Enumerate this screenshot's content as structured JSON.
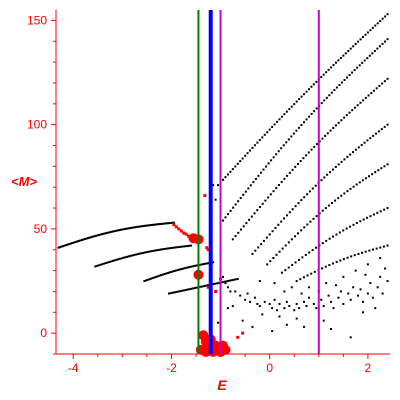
{
  "chart_data": {
    "type": "scatter",
    "xlabel": "E",
    "ylabel": "<M>",
    "xlim": [
      -4.35,
      2.45
    ],
    "ylim": [
      -10,
      155
    ],
    "xticks": [
      {
        "value": -4,
        "label": "-4"
      },
      {
        "value": -2,
        "label": "-2"
      },
      {
        "value": 0,
        "label": "0"
      },
      {
        "value": 2,
        "label": "2"
      }
    ],
    "yticks": [
      {
        "value": 0,
        "label": "0"
      },
      {
        "value": 50,
        "label": "50"
      },
      {
        "value": 100,
        "label": "100"
      },
      {
        "value": 150,
        "label": "150"
      }
    ],
    "grid": false,
    "axis_color": "#ff0000",
    "tick_label_color": "#ff0000",
    "axis_label_color": "#ff0000",
    "vertical_lines": [
      {
        "x": -1.45,
        "color": "#008000"
      },
      {
        "x": -1.2,
        "color": "#0000ff"
      },
      {
        "x": -1.0,
        "color": "#cc00cc"
      },
      {
        "x": 1.0,
        "color": "#cc00cc"
      }
    ],
    "series": [
      {
        "marker": "small",
        "color": "#000000",
        "curves": [
          {
            "x_start": -4.3,
            "x_end": -1.95,
            "y_start": 41,
            "y_end": 53,
            "n": 75,
            "bend": 0.35
          },
          {
            "x_start": -3.55,
            "x_end": -1.6,
            "y_start": 32,
            "y_end": 42,
            "n": 55,
            "bend": 0.3
          },
          {
            "x_start": -2.55,
            "x_end": -1.15,
            "y_start": 25,
            "y_end": 34,
            "n": 42,
            "bend": 0.2
          },
          {
            "x_start": -2.05,
            "x_end": -0.65,
            "y_start": 19,
            "y_end": 26,
            "n": 38,
            "bend": 0.0
          },
          {
            "x_start": -1.05,
            "x_end": 2.4,
            "y_start": 71,
            "y_end": 153,
            "n": 70,
            "bend": 0.05
          },
          {
            "x_start": -0.95,
            "x_end": 2.4,
            "y_start": 54,
            "y_end": 141,
            "n": 66,
            "bend": 0.1
          },
          {
            "x_start": -0.75,
            "x_end": 2.4,
            "y_start": 45,
            "y_end": 122,
            "n": 58,
            "bend": 0.1
          },
          {
            "x_start": -0.35,
            "x_end": 2.4,
            "y_start": 38,
            "y_end": 100,
            "n": 48,
            "bend": 0.12
          },
          {
            "x_start": -0.05,
            "x_end": 2.4,
            "y_start": 33,
            "y_end": 81,
            "n": 40,
            "bend": 0.15
          },
          {
            "x_start": 0.25,
            "x_end": 2.4,
            "y_start": 29,
            "y_end": 60,
            "n": 32,
            "bend": 0.15
          },
          {
            "x_start": 0.55,
            "x_end": 2.4,
            "y_start": 25,
            "y_end": 42,
            "n": 26,
            "bend": 0.2
          }
        ],
        "scattered_points": [
          [
            -1.0,
            30
          ],
          [
            -0.95,
            27
          ],
          [
            -0.9,
            24
          ],
          [
            -0.85,
            22
          ],
          [
            -0.8,
            20
          ],
          [
            -0.7,
            20
          ],
          [
            -0.6,
            18
          ],
          [
            -0.5,
            16
          ],
          [
            -0.45,
            19
          ],
          [
            -0.4,
            15
          ],
          [
            -0.3,
            17
          ],
          [
            -0.25,
            14
          ],
          [
            -0.2,
            13
          ],
          [
            -0.1,
            15
          ],
          [
            0.0,
            14
          ],
          [
            0.05,
            12
          ],
          [
            0.1,
            16
          ],
          [
            0.15,
            11
          ],
          [
            0.2,
            14
          ],
          [
            0.3,
            12
          ],
          [
            0.35,
            15
          ],
          [
            0.4,
            13
          ],
          [
            0.5,
            11
          ],
          [
            0.55,
            14
          ],
          [
            0.6,
            12
          ],
          [
            0.7,
            15
          ],
          [
            0.75,
            13
          ],
          [
            0.8,
            17
          ],
          [
            0.9,
            14
          ],
          [
            0.95,
            12
          ],
          [
            1.05,
            16
          ],
          [
            1.1,
            13
          ],
          [
            1.2,
            18
          ],
          [
            1.25,
            15
          ],
          [
            1.3,
            12
          ],
          [
            1.4,
            17
          ],
          [
            1.45,
            20
          ],
          [
            1.5,
            14
          ],
          [
            1.6,
            19
          ],
          [
            1.65,
            16
          ],
          [
            1.7,
            22
          ],
          [
            1.8,
            18
          ],
          [
            1.85,
            21
          ],
          [
            1.9,
            15
          ],
          [
            2.0,
            19
          ],
          [
            2.05,
            24
          ],
          [
            2.1,
            17
          ],
          [
            2.2,
            22
          ],
          [
            2.25,
            27
          ],
          [
            2.3,
            19
          ],
          [
            2.35,
            31
          ],
          [
            2.4,
            25
          ],
          [
            -0.2,
            25
          ],
          [
            0.1,
            24
          ],
          [
            0.45,
            22
          ],
          [
            0.8,
            22
          ],
          [
            1.15,
            24
          ],
          [
            1.5,
            27
          ],
          [
            1.75,
            30
          ],
          [
            2.0,
            33
          ],
          [
            2.25,
            36
          ],
          [
            0.3,
            20
          ],
          [
            0.65,
            19
          ],
          [
            1.0,
            20
          ],
          [
            1.35,
            23
          ],
          [
            1.95,
            28
          ],
          [
            -0.75,
            13
          ],
          [
            -0.55,
            6
          ],
          [
            -0.35,
            3
          ],
          [
            0.05,
            1
          ],
          [
            0.35,
            4
          ],
          [
            0.7,
            3
          ],
          [
            1.25,
            2
          ],
          [
            1.65,
            -2
          ],
          [
            -1.35,
            -3
          ],
          [
            -1.05,
            5
          ],
          [
            -1.0,
            -4
          ],
          [
            -0.85,
            12
          ],
          [
            -1.15,
            71
          ],
          [
            -1.1,
            64
          ],
          [
            0.2,
            8
          ],
          [
            1.1,
            6
          ],
          [
            1.9,
            10
          ],
          [
            2.15,
            12
          ],
          [
            0.55,
            7
          ],
          [
            -0.15,
            9
          ]
        ]
      },
      {
        "marker": "medium",
        "color": "#ff0000",
        "points": [
          [
            -1.95,
            52
          ],
          [
            -1.9,
            51
          ],
          [
            -1.85,
            50
          ],
          [
            -1.8,
            49
          ],
          [
            -1.75,
            48
          ],
          [
            -1.7,
            47.5
          ],
          [
            -1.65,
            46.5
          ],
          [
            -1.6,
            46
          ],
          [
            -1.55,
            45.5
          ],
          [
            -1.5,
            45
          ],
          [
            -1.45,
            45
          ],
          [
            -1.4,
            44
          ],
          [
            -1.32,
            66
          ],
          [
            -1.28,
            41
          ],
          [
            -1.25,
            40
          ],
          [
            -1.5,
            28
          ],
          [
            -1.45,
            27.5
          ],
          [
            -1.4,
            28
          ],
          [
            -1.25,
            22
          ],
          [
            -1.1,
            20
          ],
          [
            -0.55,
            0
          ],
          [
            -0.65,
            -2
          ],
          [
            -1.0,
            26
          ]
        ]
      },
      {
        "marker": "large",
        "color": "#ff0000",
        "points": [
          [
            -1.55,
            45.5
          ],
          [
            -1.45,
            45
          ],
          [
            -1.45,
            28
          ],
          [
            -1.35,
            -1
          ],
          [
            -1.3,
            -4
          ],
          [
            -1.25,
            -7
          ],
          [
            -1.2,
            -3
          ],
          [
            -1.1,
            -6
          ],
          [
            -1.05,
            -8
          ],
          [
            -0.95,
            -6
          ],
          [
            -0.9,
            -8
          ],
          [
            -1.4,
            -8
          ],
          [
            -1.3,
            -9
          ],
          [
            -1.15,
            -9
          ],
          [
            -1.0,
            -9
          ]
        ]
      }
    ]
  }
}
